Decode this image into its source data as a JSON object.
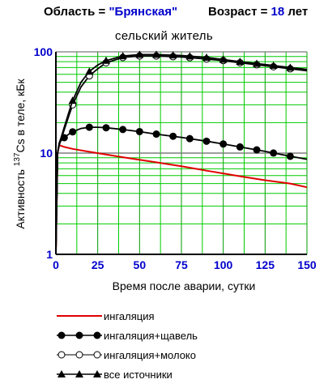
{
  "header": {
    "region_label": "Область = ",
    "region_value": "\"Брянская\"",
    "age_label": "Возраст = ",
    "age_value": "18",
    "age_unit": " лет"
  },
  "chart_data": {
    "type": "line",
    "title": "сельский житель",
    "xlabel": "Время после аварии, сутки",
    "ylabel_parts": {
      "sup": "137",
      "main": "Cs в теле, кБк",
      "prefix": "Активность "
    },
    "xlim": [
      0,
      150
    ],
    "ylim": [
      1,
      100
    ],
    "yscale": "log",
    "xticks": [
      "0",
      "25",
      "50",
      "75",
      "100",
      "125",
      "150"
    ],
    "yticks": [
      "1",
      "10",
      "100"
    ],
    "grid": true,
    "legend_position": "bottom",
    "series": [
      {
        "name": "ингаляция",
        "color": "#e00000",
        "marker": "none",
        "x": [
          0,
          1,
          2,
          3,
          5,
          10,
          20,
          30,
          40,
          50,
          60,
          75,
          90,
          100,
          110,
          125,
          140,
          150
        ],
        "y": [
          1,
          10,
          12,
          11.8,
          11.5,
          11,
          10.3,
          9.7,
          9.1,
          8.6,
          8.1,
          7.4,
          6.7,
          6.3,
          5.9,
          5.4,
          5.0,
          4.6
        ]
      },
      {
        "name": "ингаляция+щавель",
        "color": "#000000",
        "marker": "filled-circle",
        "x": [
          0,
          1,
          2,
          3,
          5,
          8,
          10,
          15,
          20,
          25,
          30,
          40,
          50,
          60,
          75,
          90,
          100,
          110,
          125,
          140,
          150
        ],
        "y": [
          1,
          10,
          12.5,
          13.2,
          14.2,
          15.5,
          16.2,
          17.5,
          18,
          18,
          17.8,
          17.1,
          16.3,
          15.4,
          14.3,
          13.1,
          12.3,
          11.5,
          10.4,
          9.3,
          8.7
        ],
        "marker_x": [
          5,
          10,
          20,
          30,
          40,
          50,
          60,
          70,
          80,
          90,
          100,
          110,
          120,
          130,
          140
        ]
      },
      {
        "name": "ингаляция+молоко",
        "color": "#000000",
        "marker": "open-circle",
        "x": [
          0,
          1,
          2,
          3,
          5,
          8,
          10,
          15,
          20,
          25,
          30,
          40,
          50,
          60,
          75,
          90,
          100,
          110,
          125,
          140,
          150
        ],
        "y": [
          1,
          10,
          12,
          13.5,
          17,
          24,
          30,
          45,
          58,
          68,
          78,
          88,
          91,
          91,
          89,
          85,
          82,
          78,
          73,
          68,
          65
        ],
        "marker_x": [
          10,
          20,
          30,
          40,
          50,
          60,
          70,
          80,
          90,
          100,
          110,
          120,
          130,
          140
        ]
      },
      {
        "name": "все источники",
        "color": "#000000",
        "marker": "filled-triangle",
        "x": [
          0,
          1,
          2,
          3,
          5,
          8,
          10,
          15,
          20,
          25,
          30,
          40,
          50,
          60,
          75,
          90,
          100,
          110,
          125,
          140,
          150
        ],
        "y": [
          1,
          10,
          12.5,
          14,
          18,
          26,
          33,
          50,
          64,
          74,
          82,
          91,
          94,
          94,
          92,
          88,
          84,
          80,
          75,
          70,
          67
        ],
        "marker_x": [
          10,
          20,
          30,
          40,
          50,
          60,
          70,
          80,
          90,
          100,
          110,
          120,
          130,
          140
        ]
      }
    ]
  }
}
